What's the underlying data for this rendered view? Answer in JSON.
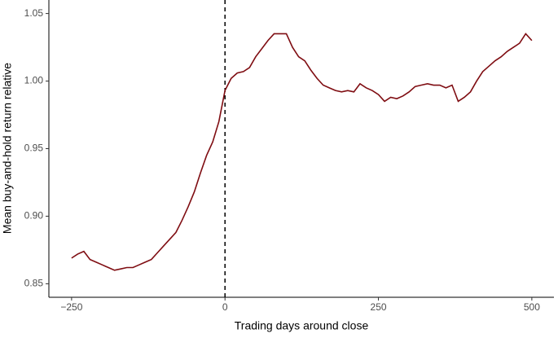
{
  "chart_data": {
    "type": "line",
    "x_label": "Trading days around close",
    "y_label": "Mean buy-and-hold return relative",
    "x": [
      -250,
      -240,
      -230,
      -220,
      -210,
      -200,
      -190,
      -180,
      -170,
      -160,
      -150,
      -140,
      -130,
      -120,
      -110,
      -100,
      -90,
      -80,
      -70,
      -60,
      -50,
      -40,
      -30,
      -20,
      -10,
      0,
      10,
      20,
      30,
      40,
      50,
      60,
      70,
      80,
      90,
      100,
      110,
      120,
      130,
      140,
      150,
      160,
      170,
      180,
      190,
      200,
      210,
      220,
      230,
      240,
      250,
      260,
      270,
      280,
      290,
      300,
      310,
      320,
      330,
      340,
      350,
      360,
      370,
      380,
      390,
      400,
      410,
      420,
      430,
      440,
      450,
      460,
      470,
      480,
      490,
      500
    ],
    "series": [
      {
        "color": "#7f0d12",
        "values": [
          0.869,
          0.872,
          0.874,
          0.868,
          0.866,
          0.864,
          0.862,
          0.86,
          0.861,
          0.862,
          0.862,
          0.864,
          0.866,
          0.868,
          0.873,
          0.878,
          0.883,
          0.888,
          0.897,
          0.907,
          0.918,
          0.932,
          0.945,
          0.955,
          0.97,
          0.993,
          1.002,
          1.006,
          1.007,
          1.01,
          1.018,
          1.024,
          1.03,
          1.035,
          1.035,
          1.035,
          1.025,
          1.018,
          1.015,
          1.008,
          1.002,
          0.997,
          0.995,
          0.993,
          0.992,
          0.993,
          0.992,
          0.998,
          0.995,
          0.993,
          0.99,
          0.985,
          0.988,
          0.987,
          0.989,
          0.992,
          0.996,
          0.997,
          0.998,
          0.997,
          0.997,
          0.995,
          0.997,
          0.985,
          0.988,
          0.992,
          1.0,
          1.007,
          1.011,
          1.015,
          1.018,
          1.022,
          1.025,
          1.028,
          1.035,
          1.03
        ]
      }
    ],
    "xlim": [
      -287,
      536
    ],
    "ylim": [
      0.84,
      1.06
    ],
    "xticks": [
      {
        "value": -250,
        "label": "−250"
      },
      0,
      250,
      500
    ],
    "yticks": [
      0.85,
      {
        "value": 0.9,
        "label": "0.90"
      },
      0.95,
      {
        "value": 1,
        "label": "1.00"
      },
      1.05
    ],
    "vline_x": 0
  }
}
